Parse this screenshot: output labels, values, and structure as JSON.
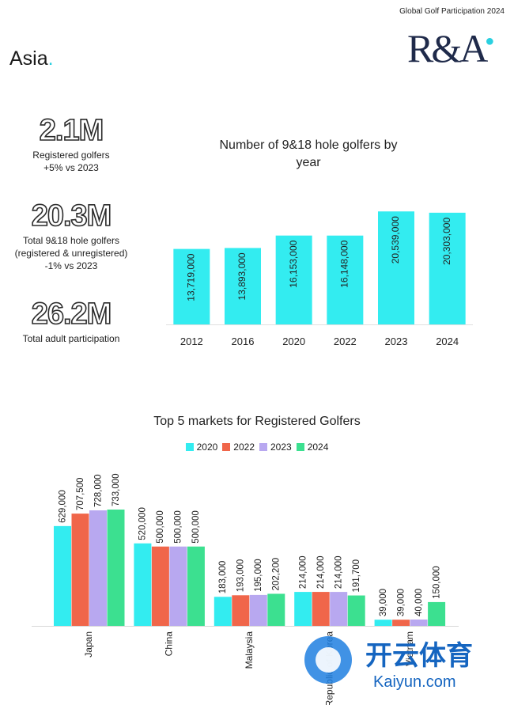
{
  "header": {
    "report_title": "Global Golf Participation 2024",
    "logo_text": "R&A",
    "region": "Asia",
    "region_dot": "."
  },
  "stats": [
    {
      "value": "2.1M",
      "label_lines": [
        "Registered golfers",
        "+5% vs 2023"
      ]
    },
    {
      "value": "20.3M",
      "label_lines": [
        "Total 9&18 hole golfers",
        "(registered & unregistered)",
        "-1% vs 2023"
      ]
    },
    {
      "value": "26.2M",
      "label_lines": [
        "Total adult participation"
      ]
    }
  ],
  "colors": {
    "cyan": "#33ecf0",
    "red": "#f0664a",
    "purple": "#b8a8f0",
    "green": "#3ce090",
    "navy": "#1f2a4a"
  },
  "chart_data": [
    {
      "type": "bar",
      "title": "Number of 9&18 hole golfers by year",
      "title_lines": [
        "Number of 9&18 hole golfers by",
        "year"
      ],
      "categories": [
        "2012",
        "2016",
        "2020",
        "2022",
        "2023",
        "2024"
      ],
      "values": [
        13719000,
        13893000,
        16153000,
        16148000,
        20539000,
        20303000
      ],
      "data_labels": [
        "13,719,000",
        "13,893,000",
        "16,153,000",
        "16,148,000",
        "20,539,000",
        "20,303,000"
      ],
      "ylim": [
        0,
        21000000
      ],
      "xlabel": "",
      "ylabel": ""
    },
    {
      "type": "bar",
      "title": "Top 5 markets for Registered Golfers",
      "categories": [
        "Japan",
        "China",
        "Malaysia",
        "Republic of Korea",
        "Vietnam"
      ],
      "category_labels": [
        "Japan",
        "China",
        "Malaysia",
        "Republic of Korea",
        "Vietnam"
      ],
      "series": [
        {
          "name": "2020",
          "values": [
            629000,
            520000,
            183000,
            214000,
            39000
          ],
          "labels": [
            "629,000",
            "520,000",
            "183,000",
            "214,000",
            "39,000"
          ]
        },
        {
          "name": "2022",
          "values": [
            707500,
            500000,
            193000,
            214000,
            39000
          ],
          "labels": [
            "707,500",
            "500,000",
            "193,000",
            "214,000",
            "39,000"
          ]
        },
        {
          "name": "2023",
          "values": [
            728000,
            500000,
            195000,
            214000,
            40000
          ],
          "labels": [
            "728,000",
            "500,000",
            "195,000",
            "214,000",
            "40,000"
          ]
        },
        {
          "name": "2024",
          "values": [
            733000,
            500000,
            202200,
            191700,
            150000
          ],
          "labels": [
            "733,000",
            "500,000",
            "202,200",
            "191,700",
            "150,000"
          ]
        }
      ],
      "ylim": [
        0,
        733000
      ],
      "legend": "top"
    }
  ],
  "watermark": {
    "brand": "开云体育",
    "site": "Kaiyun.com"
  }
}
